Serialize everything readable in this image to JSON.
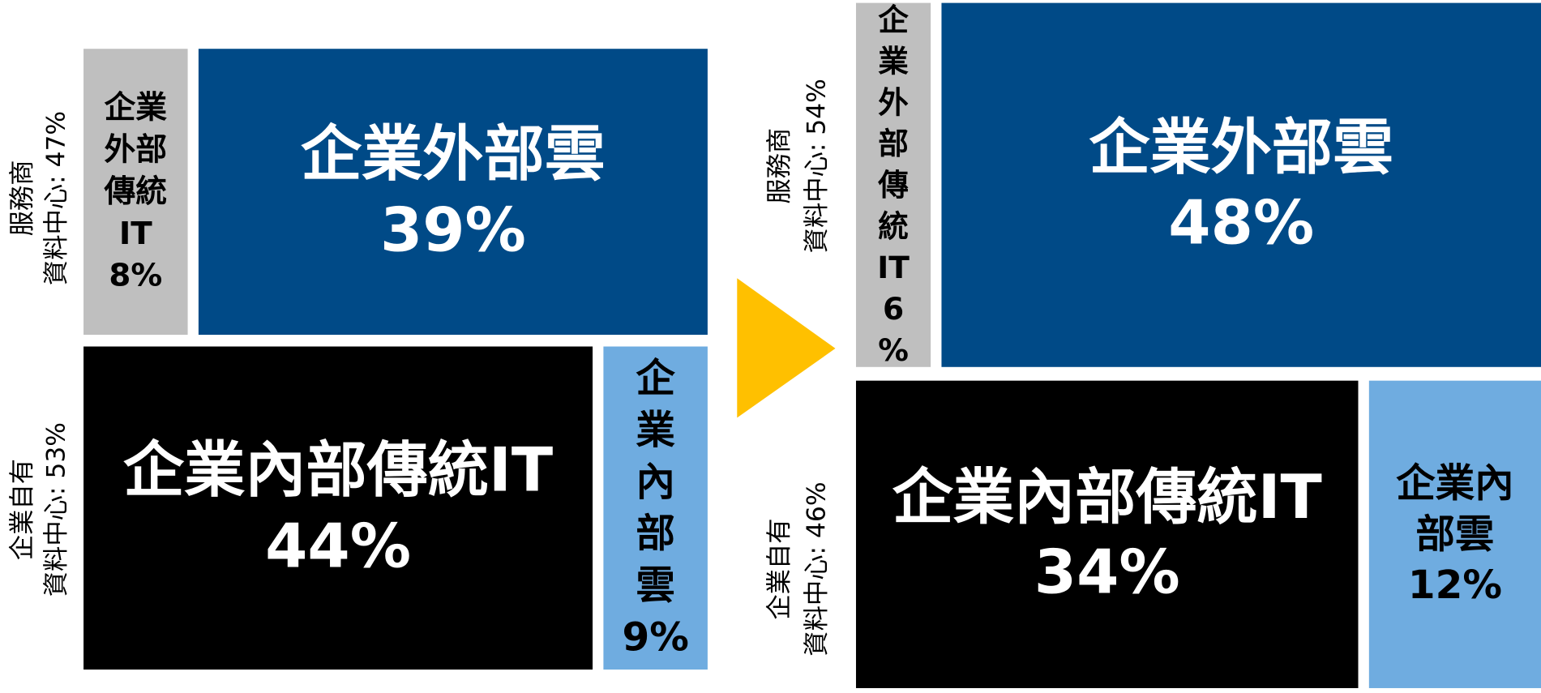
{
  "panels": [
    {
      "side_labels": [
        {
          "lines": [
            "服務商",
            "資料中心: 47%"
          ]
        },
        {
          "lines": [
            "企業自有",
            "資料中心: 53%"
          ]
        }
      ],
      "blocks": [
        {
          "lines": [
            "企業",
            "外部",
            "傳統",
            "IT",
            "8%"
          ]
        },
        {
          "lines": [
            "企業外部雲",
            "39%"
          ]
        },
        {
          "lines": [
            "企業內部傳統IT",
            "44%"
          ]
        },
        {
          "lines": [
            "企",
            "業",
            "內",
            "部",
            "雲",
            "9%"
          ]
        }
      ]
    },
    {
      "side_labels": [
        {
          "lines": [
            "服務商",
            "資料中心: 54%"
          ]
        },
        {
          "lines": [
            "企業自有",
            "資料中心: 46%"
          ]
        }
      ],
      "blocks": [
        {
          "lines": [
            "企",
            "業",
            "外",
            "部",
            "傳",
            "統",
            "IT",
            "6",
            "%"
          ]
        },
        {
          "lines": [
            "企業外部雲",
            "48%"
          ]
        },
        {
          "lines": [
            "企業內部傳統IT",
            "34%"
          ]
        },
        {
          "lines": [
            "企業內",
            "部雲",
            "12%"
          ]
        }
      ]
    }
  ]
}
